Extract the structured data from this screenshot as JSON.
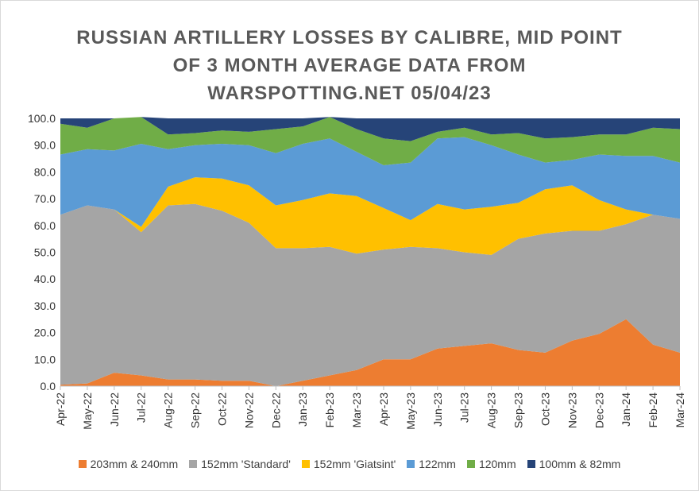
{
  "chart_data": {
    "type": "area",
    "stacked": true,
    "title": "RUSSIAN ARTILLERY LOSSES BY CALIBRE, MID POINT OF 3 MONTH AVERAGE DATA FROM WARSPOTTING.NET 05/04/23",
    "title_lines": [
      "RUSSIAN ARTILLERY LOSSES BY CALIBRE, MID POINT",
      "OF 3 MONTH AVERAGE DATA FROM",
      "WARSPOTTING.NET 05/04/23"
    ],
    "x": [
      "Apr-22",
      "May-22",
      "Jun-22",
      "Jul-22",
      "Aug-22",
      "Sep-22",
      "Oct-22",
      "Nov-22",
      "Dec-22",
      "Jan-23",
      "Feb-23",
      "Mar-23",
      "Apr-23",
      "May-23",
      "Jun-23",
      "Jul-23",
      "Aug-23",
      "Sep-23",
      "Oct-23",
      "Nov-23",
      "Dec-23",
      "Jan-24",
      "Feb-24",
      "Mar-24"
    ],
    "ylim": [
      0,
      100
    ],
    "yticks": [
      "0.0",
      "10.0",
      "20.0",
      "30.0",
      "40.0",
      "50.0",
      "60.0",
      "70.0",
      "80.0",
      "90.0",
      "100.0"
    ],
    "legend_position": "bottom",
    "grid": false,
    "series": [
      {
        "name": "203mm & 240mm",
        "color": "#ed7d31",
        "values": [
          0.5,
          1,
          5,
          4,
          2.5,
          2.5,
          2,
          2,
          0,
          2,
          4,
          6,
          10,
          10,
          14,
          15,
          16,
          13.5,
          12.5,
          17,
          19.5,
          25,
          15.5,
          12.5
        ]
      },
      {
        "name": "152mm 'Standard'",
        "color": "#a5a5a5",
        "values": [
          63.5,
          66.5,
          61,
          53.5,
          65,
          65.5,
          63.5,
          59,
          51.5,
          49.5,
          48,
          43.5,
          41,
          42,
          37.5,
          35,
          33,
          41.5,
          44.5,
          41,
          38.5,
          35.5,
          48.5,
          50
        ]
      },
      {
        "name": "152mm 'Giatsint'",
        "color": "#ffc000",
        "values": [
          0,
          0,
          0,
          2,
          7,
          10,
          12,
          14,
          16,
          18,
          20,
          21.5,
          15.5,
          10,
          16.5,
          16,
          18,
          13.5,
          16.5,
          17,
          11.5,
          5.5,
          0,
          0
        ]
      },
      {
        "name": "122mm",
        "color": "#5b9bd5",
        "values": [
          22.5,
          21,
          22,
          31,
          14,
          12,
          13,
          15,
          19.5,
          21,
          20.5,
          16.5,
          16,
          21.5,
          24.5,
          27,
          23,
          18,
          10,
          9.5,
          17,
          20,
          22,
          21
        ]
      },
      {
        "name": "120mm",
        "color": "#70ad47",
        "values": [
          11.5,
          8,
          12,
          10,
          5.5,
          4.5,
          5,
          5,
          9,
          6.5,
          8,
          8.5,
          10,
          8,
          2.5,
          3.5,
          4,
          8,
          9,
          8.5,
          7.5,
          8,
          10.5,
          12.5
        ]
      },
      {
        "name": "100mm & 82mm",
        "color": "#264478",
        "values": [
          2,
          3.5,
          0,
          0,
          6,
          5.5,
          4.5,
          5,
          4,
          3,
          0,
          4,
          7.5,
          8.5,
          5,
          3.5,
          6,
          5.5,
          7.5,
          7,
          6,
          6,
          3.5,
          4
        ]
      }
    ]
  }
}
